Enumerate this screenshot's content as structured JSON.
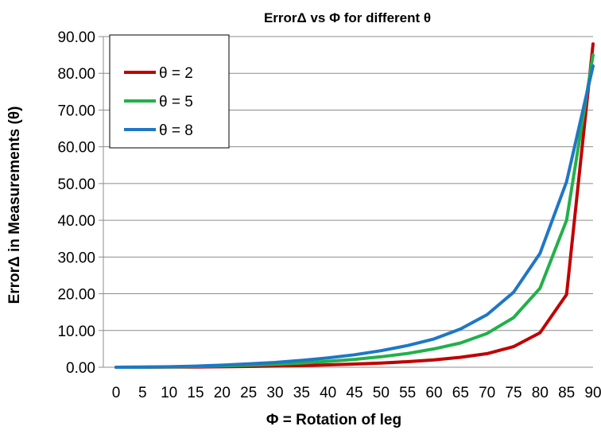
{
  "chart_data": {
    "type": "line",
    "title": "ErrorΔ vs Φ  for different θ",
    "xlabel": "Φ  = Rotation of leg",
    "ylabel": "ErrorΔ in Measurements (θ)",
    "x": [
      0,
      5,
      10,
      15,
      20,
      25,
      30,
      35,
      40,
      45,
      50,
      55,
      60,
      65,
      70,
      75,
      80,
      85,
      90
    ],
    "x_tick_labels": [
      "0",
      "5",
      "10",
      "15",
      "20",
      "25",
      "30",
      "35",
      "40",
      "45",
      "50",
      "55",
      "60",
      "65",
      "70",
      "75",
      "80",
      "85",
      "90"
    ],
    "y_tick_labels": [
      "0.00",
      "10.00",
      "20.00",
      "30.00",
      "40.00",
      "50.00",
      "60.00",
      "70.00",
      "80.00",
      "90.00"
    ],
    "ylim": [
      0,
      90
    ],
    "grid": true,
    "legend_position": "top-left",
    "series": [
      {
        "name": "θ = 2",
        "color": "#c00000",
        "values": [
          0,
          0.01,
          0.04,
          0.07,
          0.14,
          0.22,
          0.33,
          0.46,
          0.64,
          0.86,
          1.15,
          1.52,
          2.0,
          2.7,
          3.7,
          5.6,
          9.4,
          19.8,
          88.0
        ]
      },
      {
        "name": "θ = 5",
        "color": "#22b04b",
        "values": [
          0,
          0.03,
          0.09,
          0.19,
          0.36,
          0.56,
          0.82,
          1.15,
          1.6,
          2.15,
          2.85,
          3.75,
          5.0,
          6.6,
          9.2,
          13.5,
          21.5,
          40.0,
          85.0
        ]
      },
      {
        "name": "θ = 8",
        "color": "#1f77c4",
        "values": [
          0,
          0.05,
          0.14,
          0.3,
          0.56,
          0.9,
          1.3,
          1.85,
          2.55,
          3.4,
          4.5,
          5.9,
          7.7,
          10.4,
          14.3,
          20.4,
          31.0,
          50.5,
          82.0
        ]
      }
    ]
  }
}
